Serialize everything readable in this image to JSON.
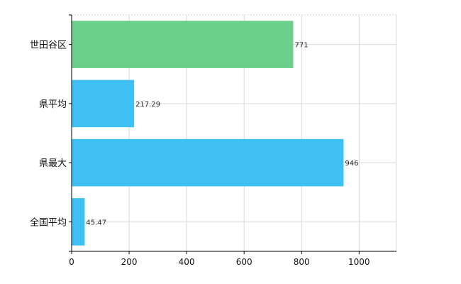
{
  "chart_data": {
    "type": "bar",
    "orientation": "horizontal",
    "categories": [
      "世田谷区",
      "県平均",
      "県最大",
      "全国平均"
    ],
    "values": [
      771,
      217.29,
      946,
      45.47
    ],
    "value_labels": [
      "771",
      "217.29",
      "946",
      "45.47"
    ],
    "bar_colors": [
      "#6bd08a",
      "#3ec1f2",
      "#3ec1f2",
      "#3ec1f2"
    ],
    "xlim": [
      0,
      1130
    ],
    "xticks": [
      0,
      200,
      400,
      600,
      800,
      1000
    ],
    "xtick_labels": [
      "0",
      "200",
      "400",
      "600",
      "800",
      "1000"
    ],
    "grid": true,
    "grid_color": "#d9d9d9",
    "title": "",
    "xlabel": "",
    "ylabel": ""
  }
}
